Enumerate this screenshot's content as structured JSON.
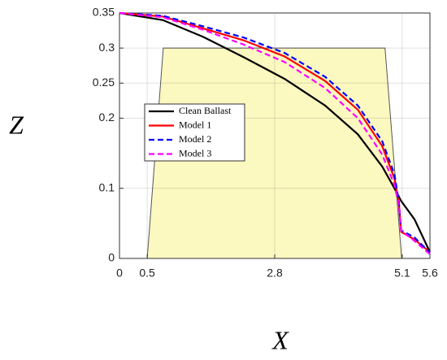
{
  "chart_data": {
    "type": "line",
    "xlabel": "X",
    "ylabel": "Z",
    "x": [
      0,
      0.78,
      1.51,
      2.24,
      2.98,
      3.71,
      4.3,
      4.74,
      4.96,
      5.04,
      5.08,
      5.32,
      5.6
    ],
    "series": [
      {
        "name": "Clean Ballast",
        "color": "#000000",
        "dash": "solid",
        "values": [
          0.35,
          0.34,
          0.316,
          0.287,
          0.256,
          0.218,
          0.177,
          0.131,
          0.1,
          0.088,
          0.082,
          0.056,
          0.009
        ]
      },
      {
        "name": "Model 1",
        "color": "#ff0000",
        "dash": "solid",
        "values": [
          0.35,
          0.345,
          0.328,
          0.311,
          0.288,
          0.253,
          0.212,
          0.16,
          0.114,
          0.079,
          0.038,
          0.027,
          0.009
        ]
      },
      {
        "name": "Model 2",
        "color": "#0000ff",
        "dash": "dashed",
        "values": [
          0.35,
          0.346,
          0.331,
          0.315,
          0.293,
          0.259,
          0.218,
          0.167,
          0.12,
          0.08,
          0.04,
          0.03,
          0.008
        ]
      },
      {
        "name": "Model 3",
        "color": "#ff00ff",
        "dash": "dashed",
        "values": [
          0.35,
          0.344,
          0.326,
          0.305,
          0.28,
          0.243,
          0.2,
          0.148,
          0.105,
          0.075,
          0.04,
          0.025,
          0.006
        ]
      }
    ],
    "region": {
      "color": "#fbf8c0",
      "x": [
        0.5,
        0.79,
        4.79,
        5.09
      ],
      "y": [
        0,
        0.3,
        0.3,
        0
      ]
    },
    "xlim": [
      0,
      5.6
    ],
    "xticks": [
      0,
      0.5,
      2.8,
      5.1,
      5.6
    ],
    "ylim": [
      0,
      0.35
    ],
    "yticks": [
      0,
      0.1,
      0.2,
      0.25,
      0.3,
      0.35
    ],
    "grid": true,
    "legend": "left"
  }
}
